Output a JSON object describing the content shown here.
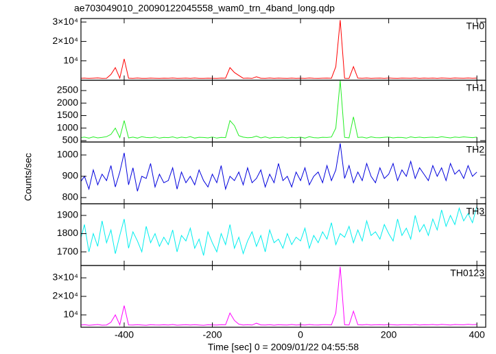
{
  "chart_data": {
    "type": "line",
    "title": "ae703049010_20090122045558_wam0_trn_4band_long.qdp",
    "xlabel": "Time [sec] 0 = 2009/01/22 04:55:58",
    "ylabel": "Counts/sec",
    "xlim": [
      -498,
      420
    ],
    "xticks": [
      -400,
      -200,
      0,
      200,
      400
    ],
    "x": [
      -500,
      -490,
      -480,
      -470,
      -460,
      -450,
      -440,
      -430,
      -420,
      -410,
      -400,
      -390,
      -380,
      -370,
      -360,
      -350,
      -340,
      -330,
      -320,
      -310,
      -300,
      -290,
      -280,
      -270,
      -260,
      -250,
      -240,
      -230,
      -220,
      -210,
      -200,
      -190,
      -180,
      -170,
      -160,
      -150,
      -140,
      -130,
      -120,
      -110,
      -100,
      -90,
      -80,
      -70,
      -60,
      -50,
      -40,
      -30,
      -20,
      -10,
      0,
      10,
      20,
      30,
      40,
      50,
      60,
      70,
      80,
      90,
      100,
      110,
      120,
      130,
      140,
      150,
      160,
      170,
      180,
      190,
      200,
      210,
      220,
      230,
      240,
      250,
      260,
      270,
      280,
      290,
      300,
      310,
      320,
      330,
      340,
      350,
      360,
      370,
      380,
      390,
      400
    ],
    "panels": [
      {
        "name": "TH0",
        "color": "#ff0000",
        "ylim": [
          0,
          31800
        ],
        "yticks": [
          {
            "value": 10000,
            "label": "10⁴"
          },
          {
            "value": 20000,
            "label": "2×10⁴"
          },
          {
            "value": 30000,
            "label": "3×10⁴"
          }
        ],
        "values": [
          1000,
          1100,
          950,
          1050,
          1200,
          980,
          1020,
          3000,
          6500,
          1080,
          11000,
          1050,
          980,
          1120,
          1000,
          950,
          1100,
          1030,
          990,
          1060,
          1010,
          1150,
          970,
          1040,
          1080,
          990,
          1120,
          1000,
          960,
          1070,
          1030,
          980,
          1100,
          1050,
          6500,
          4000,
          2500,
          1010,
          1090,
          970,
          1800,
          1040,
          1000,
          1120,
          960,
          1080,
          1030,
          990,
          1110,
          1000,
          1050,
          970,
          1130,
          1010,
          980,
          1060,
          1100,
          1020,
          7000,
          31000,
          1040,
          990,
          7000,
          1080,
          1010,
          1120,
          980,
          1050,
          1090,
          1000,
          1130,
          1020,
          970,
          1100,
          1060,
          1010,
          1140,
          990,
          1080,
          1030,
          1100,
          1000,
          1150,
          1050,
          990,
          1120,
          1070,
          1010,
          1160,
          1040,
          1100
        ]
      },
      {
        "name": "TH1",
        "color": "#22ee22",
        "ylim": [
          445,
          2911
        ],
        "yticks": [
          500,
          1000,
          1500,
          2000,
          2500
        ],
        "values": [
          620,
          640,
          600,
          650,
          610,
          630,
          660,
          750,
          1000,
          620,
          1300,
          610,
          640,
          600,
          655,
          625,
          615,
          645,
          600,
          630,
          620,
          650,
          605,
          640,
          615,
          660,
          600,
          635,
          625,
          610,
          645,
          600,
          630,
          620,
          1300,
          1100,
          700,
          640,
          615,
          625,
          680,
          610,
          650,
          600,
          635,
          620,
          645,
          605,
          630,
          615,
          640,
          600,
          655,
          620,
          610,
          635,
          625,
          645,
          1000,
          2900,
          630,
          610,
          1450,
          625,
          640,
          605,
          650,
          620,
          615,
          635,
          645,
          610,
          630,
          625,
          600,
          650,
          620,
          640,
          615,
          630,
          640,
          620,
          655,
          630,
          610,
          645,
          625,
          650,
          635,
          620,
          640
        ]
      },
      {
        "name": "TH2",
        "color": "#0000dd",
        "ylim": [
          771,
          1061
        ],
        "yticks": [
          800,
          900,
          1000
        ],
        "values": [
          870,
          900,
          840,
          930,
          860,
          910,
          880,
          950,
          850,
          920,
          1010,
          860,
          940,
          830,
          900,
          890,
          960,
          850,
          910,
          870,
          880,
          940,
          840,
          920,
          870,
          900,
          860,
          930,
          880,
          850,
          910,
          870,
          950,
          840,
          900,
          880,
          920,
          860,
          940,
          870,
          890,
          930,
          850,
          910,
          870,
          960,
          880,
          900,
          850,
          920,
          880,
          940,
          860,
          900,
          920,
          870,
          950,
          880,
          930,
          1055,
          890,
          950,
          870,
          920,
          880,
          960,
          900,
          870,
          940,
          890,
          910,
          960,
          880,
          930,
          900,
          970,
          890,
          940,
          910,
          880,
          950,
          900,
          940,
          880,
          960,
          910,
          930,
          890,
          950,
          900,
          920
        ]
      },
      {
        "name": "TH3",
        "color": "#00eeee",
        "ylim": [
          1625,
          1964
        ],
        "yticks": [
          1700,
          1800,
          1900
        ],
        "values": [
          1760,
          1850,
          1700,
          1800,
          1730,
          1870,
          1750,
          1820,
          1690,
          1790,
          1880,
          1720,
          1810,
          1760,
          1700,
          1840,
          1750,
          1800,
          1730,
          1780,
          1740,
          1820,
          1700,
          1790,
          1760,
          1830,
          1720,
          1770,
          1680,
          1810,
          1750,
          1700,
          1800,
          1740,
          1850,
          1720,
          1780,
          1690,
          1760,
          1810,
          1730,
          1790,
          1700,
          1820,
          1750,
          1770,
          1720,
          1800,
          1740,
          1780,
          1760,
          1830,
          1720,
          1790,
          1750,
          1810,
          1770,
          1860,
          1740,
          1800,
          1780,
          1840,
          1750,
          1820,
          1760,
          1870,
          1790,
          1810,
          1770,
          1850,
          1800,
          1760,
          1880,
          1790,
          1830,
          1770,
          1900,
          1810,
          1850,
          1790,
          1880,
          1820,
          1930,
          1840,
          1900,
          1850,
          1940,
          1870,
          1910,
          1860,
          1950
        ]
      },
      {
        "name": "TH0123",
        "color": "#ff00ff",
        "ylim": [
          3333,
          36667
        ],
        "yticks": [
          {
            "value": 10000,
            "label": "10⁴"
          },
          {
            "value": 20000,
            "label": "2×10⁴"
          },
          {
            "value": 30000,
            "label": "3×10⁴"
          }
        ],
        "values": [
          4500,
          4700,
          4400,
          4600,
          4800,
          4450,
          4550,
          6000,
          10000,
          4650,
          15000,
          4600,
          4500,
          4700,
          4550,
          4400,
          4750,
          4600,
          4500,
          4650,
          4550,
          4800,
          4450,
          4600,
          4700,
          4500,
          4750,
          4550,
          4400,
          4650,
          4600,
          4500,
          4700,
          4650,
          11000,
          7000,
          5000,
          4550,
          4700,
          4500,
          5500,
          4600,
          4550,
          4750,
          4450,
          4700,
          4600,
          4500,
          4800,
          4550,
          4650,
          4500,
          4800,
          4600,
          4550,
          4700,
          4750,
          4600,
          11000,
          36000,
          4650,
          4550,
          12000,
          4700,
          4600,
          4800,
          4500,
          4650,
          4750,
          4600,
          4800,
          4650,
          4550,
          4750,
          4700,
          4600,
          4850,
          4550,
          4750,
          4650,
          4800,
          4600,
          4850,
          4700,
          4550,
          4800,
          4750,
          4650,
          4900,
          4700,
          4800
        ]
      }
    ]
  }
}
